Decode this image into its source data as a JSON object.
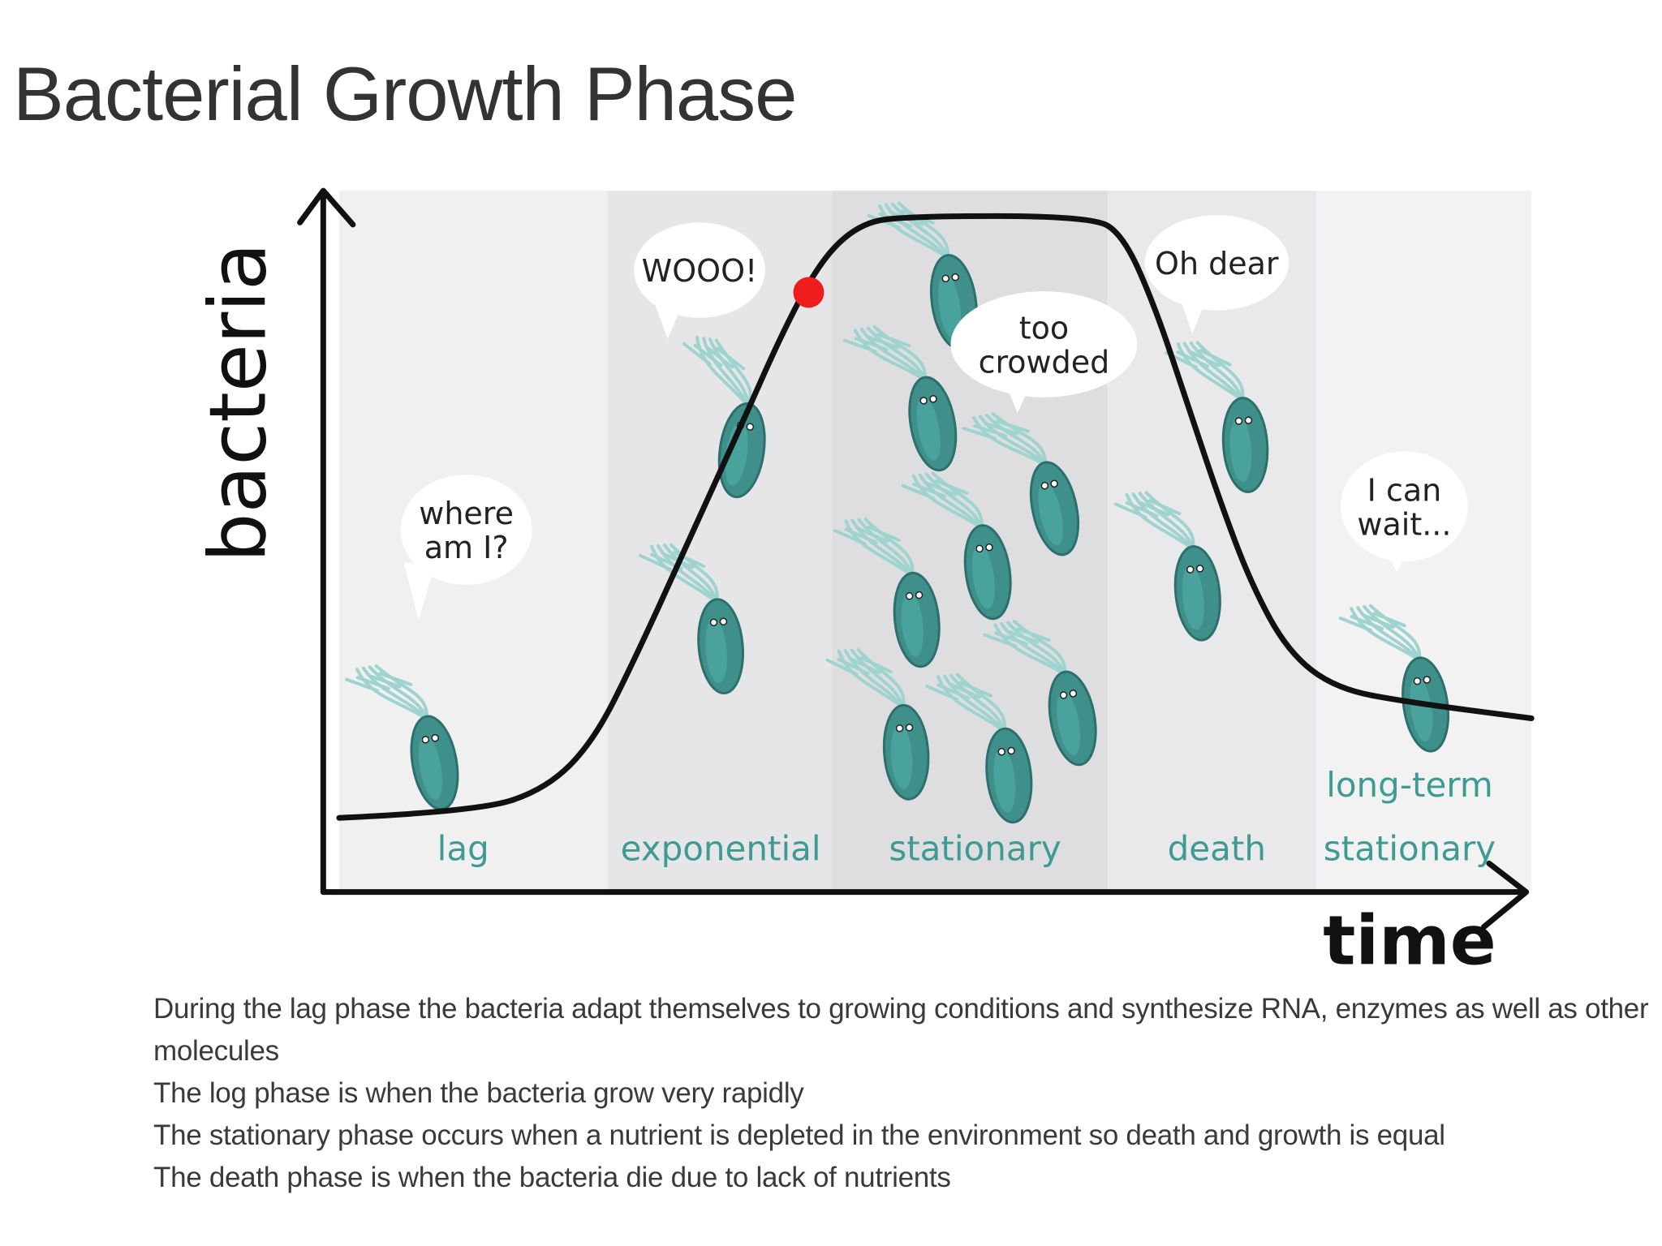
{
  "title": "Bacterial Growth Phase",
  "axes": {
    "y": "bacteria",
    "x": "time"
  },
  "phases": [
    {
      "lines": [
        "lag"
      ]
    },
    {
      "lines": [
        "exponential"
      ]
    },
    {
      "lines": [
        "stationary"
      ]
    },
    {
      "lines": [
        "death"
      ]
    },
    {
      "lines": [
        "long-term",
        "stationary"
      ]
    }
  ],
  "bubbles": [
    {
      "lines": [
        "where",
        "am I?"
      ]
    },
    {
      "lines": [
        "WOOO!"
      ]
    },
    {
      "lines": [
        "too",
        "crowded"
      ]
    },
    {
      "lines": [
        "Oh dear"
      ]
    },
    {
      "lines": [
        "I can",
        "wait..."
      ]
    }
  ],
  "description": [
    "During the lag phase the bacteria adapt themselves to growing conditions and synthesize RNA, enzymes as well as other molecules",
    "The log phase is when the bacteria grow very rapidly",
    "The stationary phase occurs when a nutrient is depleted in the environment so death and growth is equal",
    "The death phase is when the bacteria die due to lack of nutrients"
  ]
}
